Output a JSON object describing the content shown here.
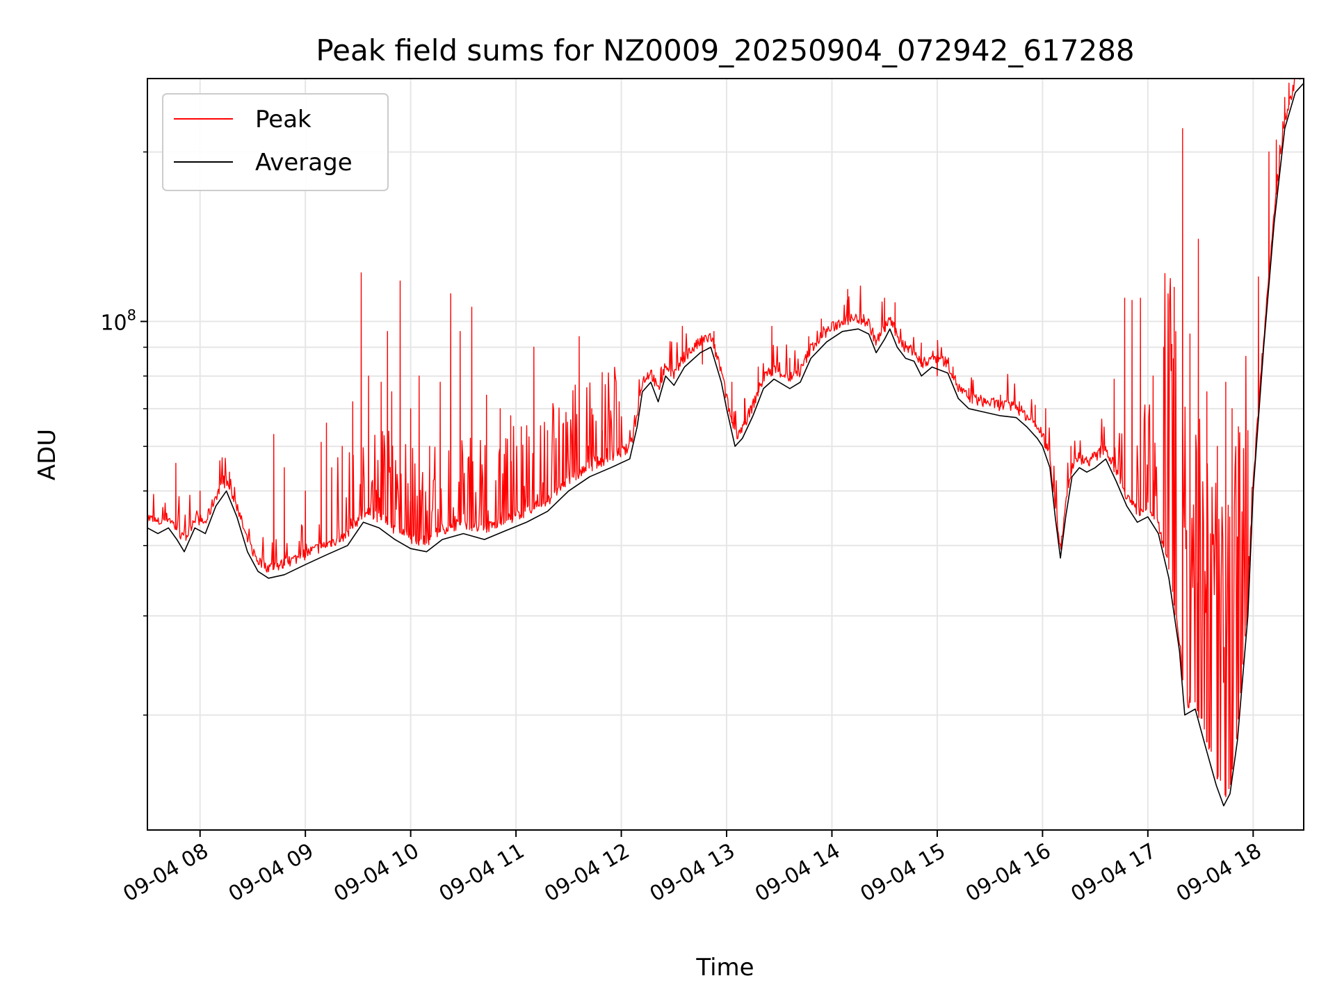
{
  "chart_data": {
    "type": "line",
    "title": "Peak field sums for NZ0009_20250904_072942_617288",
    "xlabel": "Time",
    "ylabel": "ADU",
    "x_unit": "hour of 2025-09-04",
    "xlim": [
      7.5,
      18.48
    ],
    "ylim": [
      12500000,
      270000000
    ],
    "yscale": "log",
    "grid": true,
    "legend_position": "top-left",
    "x_ticks": [
      {
        "value": 8,
        "label": "09-04 08"
      },
      {
        "value": 9,
        "label": "09-04 09"
      },
      {
        "value": 10,
        "label": "09-04 10"
      },
      {
        "value": 11,
        "label": "09-04 11"
      },
      {
        "value": 12,
        "label": "09-04 12"
      },
      {
        "value": 13,
        "label": "09-04 13"
      },
      {
        "value": 14,
        "label": "09-04 14"
      },
      {
        "value": 15,
        "label": "09-04 15"
      },
      {
        "value": 16,
        "label": "09-04 16"
      },
      {
        "value": 17,
        "label": "09-04 17"
      },
      {
        "value": 18,
        "label": "09-04 18"
      }
    ],
    "y_ticks": [
      {
        "value": 100000000,
        "label": "10",
        "exponent": "8"
      }
    ],
    "y_minor_ticks": [
      20000000,
      30000000,
      40000000,
      50000000,
      60000000,
      70000000,
      80000000,
      90000000,
      200000000
    ],
    "series": [
      {
        "name": "Average",
        "color": "#000000",
        "points": [
          [
            7.5,
            43000000
          ],
          [
            7.6,
            42000000
          ],
          [
            7.7,
            43000000
          ],
          [
            7.78,
            41000000
          ],
          [
            7.85,
            39000000
          ],
          [
            7.95,
            43000000
          ],
          [
            8.05,
            42000000
          ],
          [
            8.15,
            47000000
          ],
          [
            8.25,
            50000000
          ],
          [
            8.35,
            45000000
          ],
          [
            8.45,
            39000000
          ],
          [
            8.55,
            36000000
          ],
          [
            8.65,
            35000000
          ],
          [
            8.8,
            35500000
          ],
          [
            9.0,
            37000000
          ],
          [
            9.2,
            38500000
          ],
          [
            9.4,
            40000000
          ],
          [
            9.55,
            44000000
          ],
          [
            9.7,
            43000000
          ],
          [
            9.85,
            41000000
          ],
          [
            10.0,
            39500000
          ],
          [
            10.15,
            39000000
          ],
          [
            10.3,
            41000000
          ],
          [
            10.5,
            42000000
          ],
          [
            10.7,
            41000000
          ],
          [
            10.9,
            42500000
          ],
          [
            11.1,
            44000000
          ],
          [
            11.3,
            46000000
          ],
          [
            11.5,
            50000000
          ],
          [
            11.7,
            53000000
          ],
          [
            11.9,
            55000000
          ],
          [
            12.08,
            57000000
          ],
          [
            12.15,
            65000000
          ],
          [
            12.2,
            75000000
          ],
          [
            12.28,
            78000000
          ],
          [
            12.35,
            72000000
          ],
          [
            12.42,
            80000000
          ],
          [
            12.5,
            77000000
          ],
          [
            12.6,
            83000000
          ],
          [
            12.75,
            88000000
          ],
          [
            12.85,
            90000000
          ],
          [
            12.95,
            78000000
          ],
          [
            13.0,
            70000000
          ],
          [
            13.08,
            60000000
          ],
          [
            13.15,
            62000000
          ],
          [
            13.25,
            68000000
          ],
          [
            13.35,
            76000000
          ],
          [
            13.45,
            79000000
          ],
          [
            13.6,
            76000000
          ],
          [
            13.7,
            78000000
          ],
          [
            13.8,
            86000000
          ],
          [
            13.95,
            92000000
          ],
          [
            14.1,
            96000000
          ],
          [
            14.25,
            97000000
          ],
          [
            14.35,
            95000000
          ],
          [
            14.42,
            88000000
          ],
          [
            14.5,
            93000000
          ],
          [
            14.55,
            97000000
          ],
          [
            14.62,
            90000000
          ],
          [
            14.7,
            86000000
          ],
          [
            14.78,
            85000000
          ],
          [
            14.85,
            80000000
          ],
          [
            14.95,
            83000000
          ],
          [
            15.1,
            81000000
          ],
          [
            15.2,
            73000000
          ],
          [
            15.3,
            70000000
          ],
          [
            15.45,
            69000000
          ],
          [
            15.6,
            68000000
          ],
          [
            15.75,
            67500000
          ],
          [
            15.85,
            65000000
          ],
          [
            15.95,
            62000000
          ],
          [
            16.0,
            60000000
          ],
          [
            16.07,
            55000000
          ],
          [
            16.12,
            45000000
          ],
          [
            16.17,
            38000000
          ],
          [
            16.22,
            45000000
          ],
          [
            16.28,
            53000000
          ],
          [
            16.35,
            55000000
          ],
          [
            16.42,
            54000000
          ],
          [
            16.5,
            55000000
          ],
          [
            16.6,
            57000000
          ],
          [
            16.7,
            52000000
          ],
          [
            16.8,
            47000000
          ],
          [
            16.9,
            44000000
          ],
          [
            17.0,
            45000000
          ],
          [
            17.1,
            42000000
          ],
          [
            17.2,
            35000000
          ],
          [
            17.3,
            26000000
          ],
          [
            17.35,
            20000000
          ],
          [
            17.45,
            20500000
          ],
          [
            17.55,
            17500000
          ],
          [
            17.65,
            15000000
          ],
          [
            17.72,
            13800000
          ],
          [
            17.78,
            14500000
          ],
          [
            17.85,
            18000000
          ],
          [
            17.95,
            30000000
          ],
          [
            18.0,
            50000000
          ],
          [
            18.1,
            90000000
          ],
          [
            18.2,
            150000000
          ],
          [
            18.3,
            220000000
          ],
          [
            18.4,
            255000000
          ],
          [
            18.48,
            265000000
          ]
        ]
      },
      {
        "name": "Peak",
        "color": "#ff0000",
        "spikes": [
          [
            7.77,
            56000000
          ],
          [
            8.0,
            50000000
          ],
          [
            8.28,
            54000000
          ],
          [
            8.7,
            63000000
          ],
          [
            8.8,
            55000000
          ],
          [
            9.0,
            50000000
          ],
          [
            9.15,
            61000000
          ],
          [
            9.2,
            66000000
          ],
          [
            9.25,
            55000000
          ],
          [
            9.35,
            60000000
          ],
          [
            9.45,
            72000000
          ],
          [
            9.53,
            122000000
          ],
          [
            9.6,
            80000000
          ],
          [
            9.72,
            78000000
          ],
          [
            9.78,
            96000000
          ],
          [
            9.82,
            75000000
          ],
          [
            9.9,
            118000000
          ],
          [
            10.0,
            70000000
          ],
          [
            10.08,
            80000000
          ],
          [
            10.18,
            60000000
          ],
          [
            10.28,
            78000000
          ],
          [
            10.38,
            112000000
          ],
          [
            10.47,
            96000000
          ],
          [
            10.58,
            106000000
          ],
          [
            10.72,
            74000000
          ],
          [
            10.85,
            70000000
          ],
          [
            10.95,
            68000000
          ],
          [
            11.05,
            65000000
          ],
          [
            11.17,
            90000000
          ],
          [
            11.3,
            64000000
          ],
          [
            11.45,
            66000000
          ],
          [
            11.6,
            94000000
          ],
          [
            11.72,
            70000000
          ],
          [
            11.82,
            64000000
          ],
          [
            11.98,
            72000000
          ],
          [
            12.38,
            83000000
          ],
          [
            12.58,
            98000000
          ],
          [
            12.77,
            84000000
          ],
          [
            12.88,
            96000000
          ],
          [
            13.05,
            78000000
          ],
          [
            13.17,
            73000000
          ],
          [
            13.3,
            83000000
          ],
          [
            13.43,
            98000000
          ],
          [
            13.6,
            86000000
          ],
          [
            13.78,
            94000000
          ],
          [
            13.9,
            101000000
          ],
          [
            14.05,
            97000000
          ],
          [
            14.15,
            114000000
          ],
          [
            14.3,
            101000000
          ],
          [
            14.5,
            110000000
          ],
          [
            14.6,
            108000000
          ],
          [
            14.72,
            90000000
          ],
          [
            14.85,
            86000000
          ],
          [
            15.0,
            80000000
          ],
          [
            15.15,
            83000000
          ],
          [
            15.3,
            76000000
          ],
          [
            15.45,
            72000000
          ],
          [
            15.6,
            74000000
          ],
          [
            15.78,
            72000000
          ],
          [
            15.93,
            71000000
          ],
          [
            16.03,
            70000000
          ],
          [
            16.27,
            60000000
          ],
          [
            16.35,
            58000000
          ],
          [
            16.45,
            57000000
          ],
          [
            16.55,
            60000000
          ],
          [
            16.68,
            79000000
          ],
          [
            16.78,
            110000000
          ],
          [
            16.85,
            109000000
          ],
          [
            16.93,
            110000000
          ],
          [
            17.05,
            80000000
          ],
          [
            17.15,
            90000000
          ],
          [
            17.25,
            115000000
          ],
          [
            17.33,
            220000000
          ],
          [
            17.4,
            95000000
          ],
          [
            17.48,
            140000000
          ],
          [
            17.56,
            75000000
          ],
          [
            17.66,
            60000000
          ],
          [
            17.74,
            78000000
          ],
          [
            17.8,
            70000000
          ],
          [
            17.86,
            65000000
          ],
          [
            17.95,
            64000000
          ],
          [
            18.05,
            120000000
          ],
          [
            18.15,
            200000000
          ],
          [
            18.22,
            210000000
          ],
          [
            18.3,
            250000000
          ],
          [
            18.34,
            265000000
          ]
        ]
      }
    ]
  }
}
